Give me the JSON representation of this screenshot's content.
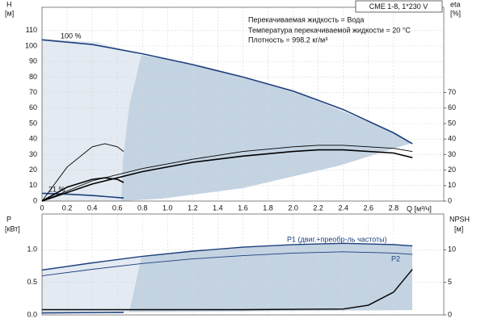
{
  "chart_data": [
    {
      "type": "line",
      "title": "CME 1-8, 1*230 V",
      "notes": [
        "Перекачиваемая жидкость = Вода",
        "Температура перекачиваемой жидкости = 20 °C",
        "Плотность = 998.2 кг/м³"
      ],
      "ylabel": "H",
      "yunit": "[м]",
      "y2label": "eta",
      "y2unit": "[%]",
      "xlabel": "Q [м³/ч]",
      "xlim": [
        0,
        3.2
      ],
      "xticks": [
        0,
        0.2,
        0.4,
        0.6,
        0.8,
        {
          "value": 1,
          "label": "1.0"
        },
        1.2,
        1.4,
        1.6,
        1.8,
        {
          "value": 2,
          "label": "2.0"
        },
        2.2,
        2.4,
        2.6,
        2.8
      ],
      "ylim": [
        0,
        125
      ],
      "yticks": [
        0,
        10,
        20,
        30,
        40,
        50,
        60,
        70,
        80,
        90,
        100,
        110
      ],
      "y2lim": [
        0,
        125
      ],
      "y2ticks": [
        0,
        10,
        20,
        30,
        40,
        50,
        60,
        70
      ],
      "grid": true,
      "series": [
        {
          "label": "100 %",
          "color": "#1d3f7c",
          "width": 1.6,
          "x": [
            0,
            0.4,
            0.8,
            1.2,
            1.6,
            2.0,
            2.4,
            2.8,
            2.95
          ],
          "values": [
            104,
            101,
            95,
            88,
            80,
            71,
            59,
            44,
            37
          ]
        },
        {
          "label": "21 %",
          "color": "#1d3f7c",
          "width": 1.6,
          "x": [
            0,
            0.2,
            0.4,
            0.65
          ],
          "values": [
            5,
            4.5,
            3.6,
            2
          ]
        },
        {
          "color": "#000000",
          "width": 0.9,
          "axis": "y2",
          "x": [
            0,
            0.4,
            0.8,
            1.2,
            1.6,
            2.0,
            2.2,
            2.4,
            2.8,
            2.95
          ],
          "values": [
            0,
            13,
            21,
            27,
            32,
            35,
            36,
            36,
            34,
            32
          ]
        },
        {
          "color": "#000000",
          "width": 1.6,
          "axis": "y2",
          "x": [
            0,
            0.4,
            0.8,
            1.2,
            1.6,
            2.0,
            2.2,
            2.4,
            2.8,
            2.95
          ],
          "values": [
            0,
            11,
            19,
            25,
            29,
            32,
            33,
            33,
            31,
            28
          ]
        },
        {
          "color": "#000000",
          "width": 0.9,
          "axis": "y2",
          "x": [
            0,
            0.2,
            0.4,
            0.5,
            0.6,
            0.65
          ],
          "values": [
            0,
            22,
            35,
            37,
            35,
            32
          ]
        },
        {
          "color": "#000000",
          "width": 1.6,
          "axis": "y2",
          "x": [
            0,
            0.2,
            0.4,
            0.5,
            0.6,
            0.65
          ],
          "values": [
            0,
            9,
            14,
            15,
            14,
            12
          ]
        }
      ]
    },
    {
      "type": "line",
      "ylabel": "P",
      "yunit": "[кВт]",
      "y2label": "NPSH",
      "y2unit": "[м]",
      "xlim": [
        0,
        3.2
      ],
      "ylim": [
        0,
        1.55
      ],
      "yticks": [
        {
          "value": 0,
          "label": "0.0"
        },
        0.5,
        {
          "value": 1,
          "label": "1.0"
        }
      ],
      "y2lim": [
        0,
        15.5
      ],
      "y2ticks": [
        0,
        5,
        10
      ],
      "grid": true,
      "series": [
        {
          "label": "P1 (двиг.+преобр-ль частоты)",
          "color": "#1d3f7c",
          "width": 1.4,
          "x": [
            0,
            0.4,
            0.8,
            1.2,
            1.6,
            2.0,
            2.4,
            2.8,
            2.95
          ],
          "values": [
            0.69,
            0.8,
            0.9,
            0.98,
            1.04,
            1.08,
            1.1,
            1.08,
            1.06
          ]
        },
        {
          "label": "P2",
          "color": "#1d3f7c",
          "width": 0.9,
          "x": [
            0,
            0.4,
            0.8,
            1.2,
            1.6,
            2.0,
            2.4,
            2.8,
            2.95
          ],
          "values": [
            0.6,
            0.7,
            0.79,
            0.86,
            0.91,
            0.95,
            0.97,
            0.95,
            0.93
          ]
        },
        {
          "color": "#1d3f7c",
          "width": 1.6,
          "x": [
            0,
            0.65
          ],
          "values": [
            0.03,
            0.04
          ]
        },
        {
          "color": "#000000",
          "width": 1.4,
          "axis": "y2",
          "x": [
            0,
            0.8,
            1.6,
            2.4,
            2.6,
            2.8,
            2.95
          ],
          "values": [
            0.8,
            0.8,
            0.8,
            0.9,
            1.5,
            3.5,
            7
          ]
        }
      ]
    }
  ]
}
